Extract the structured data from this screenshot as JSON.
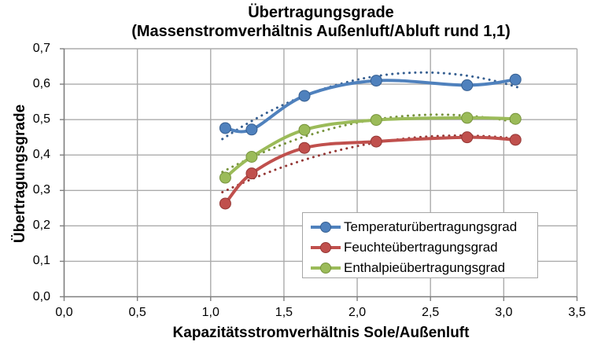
{
  "chart_data": {
    "type": "line",
    "title": "Übertragungsgrade",
    "subtitle": "(Massenstromverhältnis Außenluft/Abluft rund 1,1)",
    "xlabel": "Kapazitätsstromverhältnis Sole/Außenluft",
    "ylabel": "Übertragungsgrade",
    "xlim": [
      0,
      3.5
    ],
    "ylim": [
      0,
      0.7
    ],
    "x_ticks": [
      0,
      0.5,
      1.0,
      1.5,
      2.0,
      2.5,
      3.0,
      3.5
    ],
    "y_ticks": [
      0,
      0.1,
      0.2,
      0.3,
      0.4,
      0.5,
      0.6,
      0.7
    ],
    "decimal_separator": ",",
    "grid": true,
    "legend_position": "inside-bottom-right",
    "x": [
      1.1,
      1.28,
      1.64,
      2.13,
      2.75,
      3.08
    ],
    "series": [
      {
        "name": "Temperaturübertragungsgrad",
        "color": "#4f81bd",
        "dark_color": "#365f91",
        "marker": "circle",
        "values": [
          0.476,
          0.472,
          0.567,
          0.61,
          0.597,
          0.613
        ],
        "trend": {
          "start_x": 1.08,
          "start_y": 0.445,
          "peak_x": 2.45,
          "peak_y": 0.633,
          "end_x": 3.11
        }
      },
      {
        "name": "Feuchteübertragungsgrad",
        "color": "#c0504d",
        "dark_color": "#953735",
        "marker": "circle",
        "values": [
          0.263,
          0.348,
          0.42,
          0.438,
          0.45,
          0.443
        ],
        "trend": {
          "start_x": 1.08,
          "start_y": 0.295,
          "peak_x": 2.7,
          "peak_y": 0.455,
          "end_x": 3.11
        }
      },
      {
        "name": "Enthalpieübertragungsgrad",
        "color": "#9bbb59",
        "dark_color": "#77933c",
        "marker": "circle",
        "values": [
          0.336,
          0.395,
          0.471,
          0.499,
          0.505,
          0.502
        ],
        "trend": {
          "start_x": 1.08,
          "start_y": 0.352,
          "peak_x": 2.55,
          "peak_y": 0.514,
          "end_x": 3.11
        }
      }
    ],
    "style": {
      "gridline_color": "#ababab",
      "axis_color": "#7f7f7f",
      "background": "#ffffff",
      "line_width": 4,
      "marker_radius": 7
    }
  }
}
